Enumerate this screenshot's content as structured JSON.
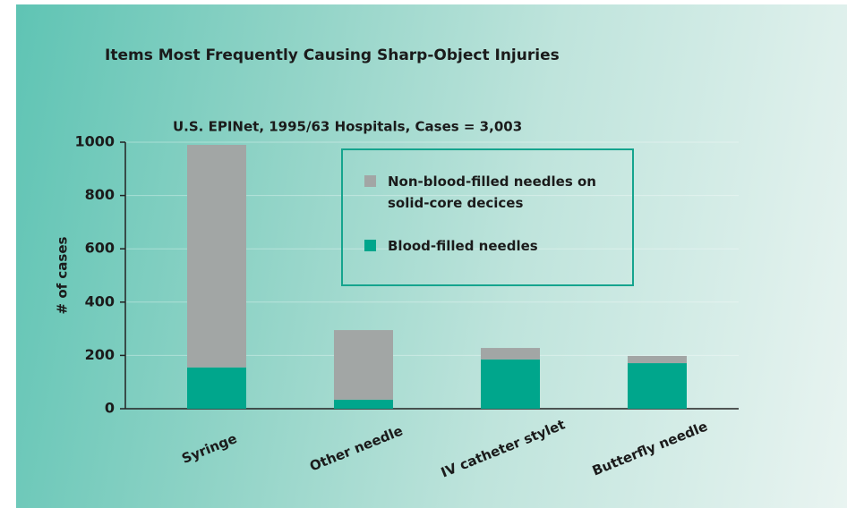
{
  "chart_data": {
    "type": "stacked-bar",
    "title": "Items Most Frequently Causing Sharp-Object Injuries",
    "subtitle": "U.S. EPINet, 1995/63 Hospitals, Cases = 3,003",
    "y_label": "# of cases",
    "categories": [
      "Syringe",
      "Other needle",
      "IV catheter stylet",
      "Butterfly needle"
    ],
    "series": [
      {
        "name": "Non-blood-filled needles on solid-core decices",
        "color": "#a2a6a5",
        "values": [
          835,
          261,
          43,
          27
        ]
      },
      {
        "name": "Blood-filled needles",
        "color": "#00a68c",
        "values": [
          155,
          34,
          185,
          171
        ]
      }
    ],
    "ylim": [
      0,
      1000
    ],
    "yticks": [
      0,
      200,
      400,
      600,
      800,
      1000
    ],
    "grid": true
  }
}
